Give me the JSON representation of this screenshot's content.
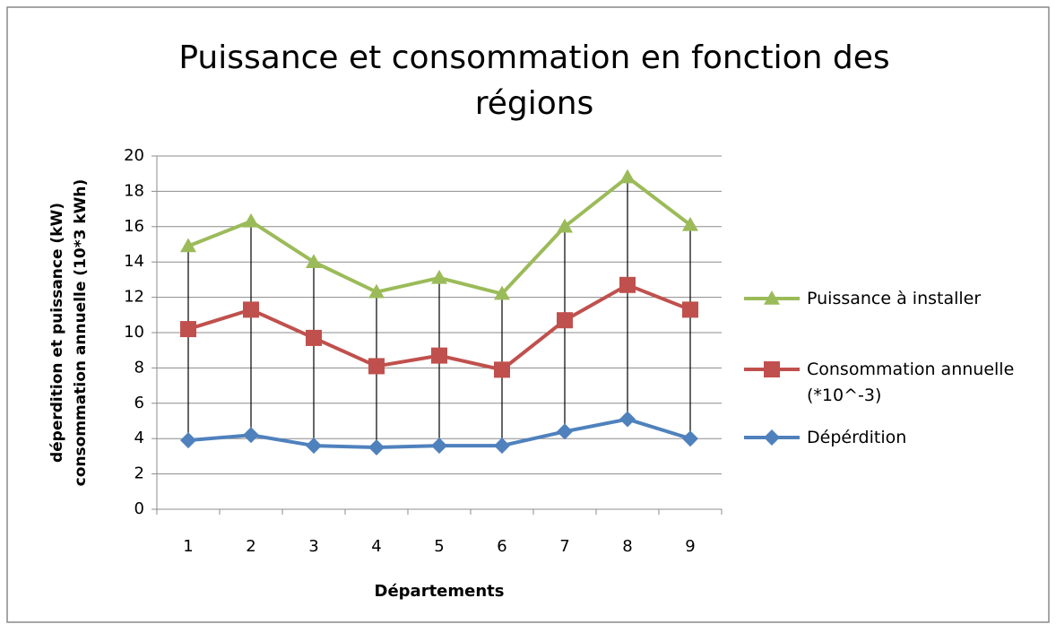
{
  "chart_data": {
    "type": "line",
    "title": [
      "Puissance et consommation en fonction des",
      "régions"
    ],
    "x_label": "Départements",
    "y_label": [
      "déperdition et puissance (kW)",
      "consommation annuelle (10*3 kWh)"
    ],
    "categories": [
      "1",
      "2",
      "3",
      "4",
      "5",
      "6",
      "7",
      "8",
      "9"
    ],
    "series": [
      {
        "name": "Puissance à installer",
        "color": "#9bbb59",
        "marker": "triangle",
        "values": [
          14.9,
          16.3,
          14.0,
          12.3,
          13.1,
          12.2,
          16.0,
          18.8,
          16.1
        ]
      },
      {
        "name": "Consommation annuelle (*10^-3)",
        "color": "#c0504d",
        "marker": "square",
        "values": [
          10.2,
          11.3,
          9.7,
          8.1,
          8.7,
          7.9,
          10.7,
          12.7,
          11.3
        ]
      },
      {
        "name": "Dépérdition",
        "color": "#4f81bd",
        "marker": "diamond",
        "values": [
          3.9,
          4.2,
          3.6,
          3.5,
          3.6,
          3.6,
          4.4,
          5.1,
          4.0
        ]
      }
    ],
    "ylim": [
      0,
      20
    ],
    "yticks": [
      0,
      2,
      4,
      6,
      8,
      10,
      12,
      14,
      16,
      18,
      20
    ],
    "grid": true,
    "high_low_lines": true,
    "legend": "right"
  }
}
